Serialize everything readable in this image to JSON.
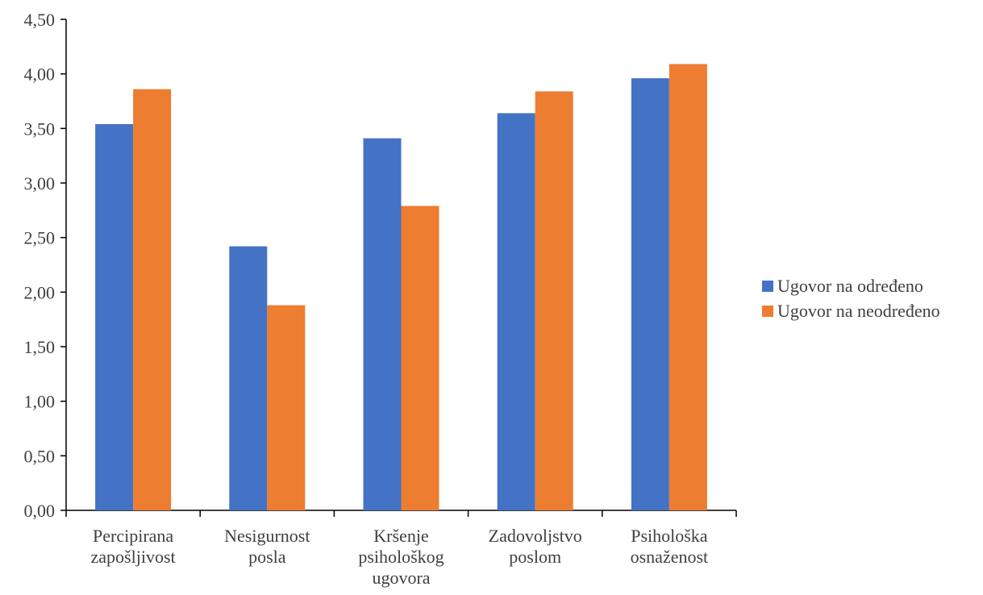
{
  "chart_data": {
    "type": "bar",
    "categories": [
      [
        "Percipirana",
        "zapošljivost"
      ],
      [
        "Nesigurnost",
        "posla"
      ],
      [
        "Kršenje",
        "psihološkog",
        "ugovora"
      ],
      [
        "Zadovoljstvo",
        "poslom"
      ],
      [
        "Psihološka",
        "osnaženost"
      ]
    ],
    "series": [
      {
        "name": "Ugovor na određeno",
        "color": "#4472C4",
        "values": [
          3.54,
          2.42,
          3.41,
          3.64,
          3.96
        ]
      },
      {
        "name": "Ugovor na neodređeno",
        "color": "#ED7D31",
        "values": [
          3.86,
          1.88,
          2.79,
          3.84,
          4.09
        ]
      }
    ],
    "yticks": [
      "0,00",
      "0,50",
      "1,00",
      "1,50",
      "2,00",
      "2,50",
      "3,00",
      "3,50",
      "4,00",
      "4,50"
    ],
    "ylim": [
      0,
      4.5
    ],
    "title": "",
    "xlabel": "",
    "ylabel": "",
    "legend_position": "right",
    "grid": false
  }
}
